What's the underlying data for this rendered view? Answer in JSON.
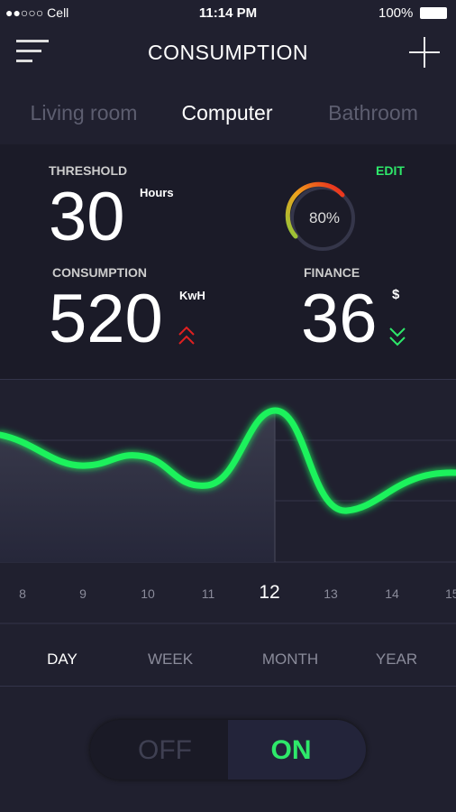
{
  "status": {
    "carrier": "Cell",
    "time": "11:14 PM",
    "battery": "100%"
  },
  "header": {
    "title": "CONSUMPTION"
  },
  "tabs": [
    "Living room",
    "Computer",
    "Bathroom"
  ],
  "stats": {
    "threshold": {
      "label": "THRESHOLD",
      "value": "30",
      "unit": "Hours"
    },
    "edit": "EDIT",
    "gauge": "80%",
    "consumption": {
      "label": "CONSUMPTION",
      "value": "520",
      "unit": "KwH"
    },
    "finance": {
      "label": "FINANCE",
      "value": "36",
      "unit": "$"
    }
  },
  "hours": [
    "8",
    "9",
    "10",
    "11",
    "12",
    "13",
    "14",
    "15"
  ],
  "periods": [
    "DAY",
    "WEEK",
    "MONTH",
    "YEAR"
  ],
  "toggle": {
    "off": "OFF",
    "on": "ON"
  }
}
